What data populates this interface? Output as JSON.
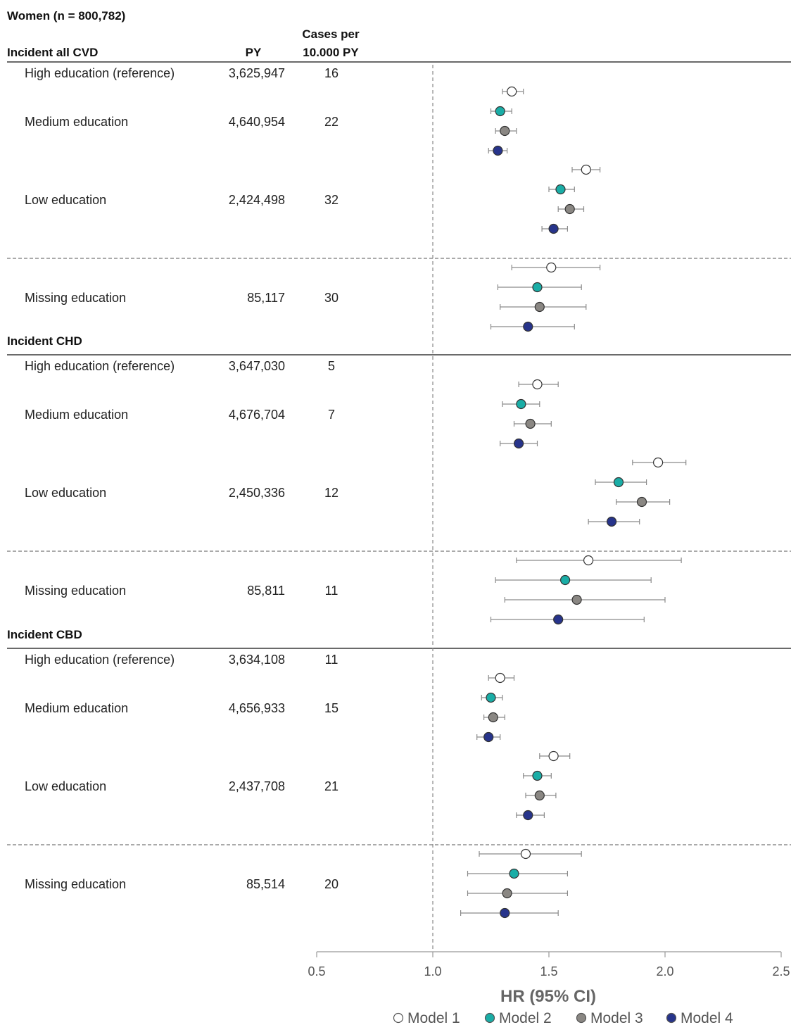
{
  "title": "Women (n = 800,782)",
  "column_headers": {
    "py": "PY",
    "cases_line1": "Cases per",
    "cases_line2": "10.000 PY"
  },
  "colors": {
    "model1": "#ffffff",
    "model2": "#1aada6",
    "model3": "#8a8783",
    "model4": "#27348b",
    "whisker": "#8a8a8a",
    "marker_edge": "#333333"
  },
  "chart_data": {
    "type": "forest",
    "xlabel": "HR (95% CI)",
    "xlim": [
      0.5,
      2.5
    ],
    "xticks": [
      "0.5",
      "1.0",
      "1.5",
      "2.0",
      "2.5"
    ],
    "reference_line": 1.0,
    "legend_position": "bottom",
    "series": [
      {
        "name": "Model 1"
      },
      {
        "name": "Model 2"
      },
      {
        "name": "Model 3"
      },
      {
        "name": "Model 4"
      }
    ],
    "sections": [
      {
        "heading": "Incident all CVD",
        "rows": [
          {
            "label": "High education (reference)",
            "py": "3,625,947",
            "cases": "16",
            "estimates": []
          },
          {
            "label": "Medium education",
            "py": "4,640,954",
            "cases": "22",
            "estimates": [
              {
                "hr": 1.34,
                "lo": 1.3,
                "hi": 1.39
              },
              {
                "hr": 1.29,
                "lo": 1.25,
                "hi": 1.34
              },
              {
                "hr": 1.31,
                "lo": 1.27,
                "hi": 1.36
              },
              {
                "hr": 1.28,
                "lo": 1.24,
                "hi": 1.32
              }
            ]
          },
          {
            "label": "Low education",
            "py": "2,424,498",
            "cases": "32",
            "estimates": [
              {
                "hr": 1.66,
                "lo": 1.6,
                "hi": 1.72
              },
              {
                "hr": 1.55,
                "lo": 1.5,
                "hi": 1.61
              },
              {
                "hr": 1.59,
                "lo": 1.54,
                "hi": 1.65
              },
              {
                "hr": 1.52,
                "lo": 1.47,
                "hi": 1.58
              }
            ]
          },
          {
            "label": "Missing education",
            "py": "85,117",
            "cases": "30",
            "estimates": [
              {
                "hr": 1.51,
                "lo": 1.34,
                "hi": 1.72
              },
              {
                "hr": 1.45,
                "lo": 1.28,
                "hi": 1.64
              },
              {
                "hr": 1.46,
                "lo": 1.29,
                "hi": 1.66
              },
              {
                "hr": 1.41,
                "lo": 1.25,
                "hi": 1.61
              }
            ]
          }
        ]
      },
      {
        "heading": "Incident CHD",
        "rows": [
          {
            "label": "High education (reference)",
            "py": "3,647,030",
            "cases": "5",
            "estimates": []
          },
          {
            "label": "Medium education",
            "py": "4,676,704",
            "cases": "7",
            "estimates": [
              {
                "hr": 1.45,
                "lo": 1.37,
                "hi": 1.54
              },
              {
                "hr": 1.38,
                "lo": 1.3,
                "hi": 1.46
              },
              {
                "hr": 1.42,
                "lo": 1.35,
                "hi": 1.51
              },
              {
                "hr": 1.37,
                "lo": 1.29,
                "hi": 1.45
              }
            ]
          },
          {
            "label": "Low education",
            "py": "2,450,336",
            "cases": "12",
            "estimates": [
              {
                "hr": 1.97,
                "lo": 1.86,
                "hi": 2.09
              },
              {
                "hr": 1.8,
                "lo": 1.7,
                "hi": 1.92
              },
              {
                "hr": 1.9,
                "lo": 1.79,
                "hi": 2.02
              },
              {
                "hr": 1.77,
                "lo": 1.67,
                "hi": 1.89
              }
            ]
          },
          {
            "label": "Missing education",
            "py": "85,811",
            "cases": "11",
            "estimates": [
              {
                "hr": 1.67,
                "lo": 1.36,
                "hi": 2.07
              },
              {
                "hr": 1.57,
                "lo": 1.27,
                "hi": 1.94
              },
              {
                "hr": 1.62,
                "lo": 1.31,
                "hi": 2.0
              },
              {
                "hr": 1.54,
                "lo": 1.25,
                "hi": 1.91
              }
            ]
          }
        ]
      },
      {
        "heading": "Incident CBD",
        "rows": [
          {
            "label": "High education (reference)",
            "py": "3,634,108",
            "cases": "11",
            "estimates": []
          },
          {
            "label": "Medium education",
            "py": "4,656,933",
            "cases": "15",
            "estimates": [
              {
                "hr": 1.29,
                "lo": 1.24,
                "hi": 1.35
              },
              {
                "hr": 1.25,
                "lo": 1.21,
                "hi": 1.3
              },
              {
                "hr": 1.26,
                "lo": 1.22,
                "hi": 1.31
              },
              {
                "hr": 1.24,
                "lo": 1.19,
                "hi": 1.29
              }
            ]
          },
          {
            "label": "Low education",
            "py": "2,437,708",
            "cases": "21",
            "estimates": [
              {
                "hr": 1.52,
                "lo": 1.46,
                "hi": 1.59
              },
              {
                "hr": 1.45,
                "lo": 1.39,
                "hi": 1.51
              },
              {
                "hr": 1.46,
                "lo": 1.4,
                "hi": 1.53
              },
              {
                "hr": 1.41,
                "lo": 1.36,
                "hi": 1.48
              }
            ]
          },
          {
            "label": "Missing education",
            "py": "85,514",
            "cases": "20",
            "estimates": [
              {
                "hr": 1.4,
                "lo": 1.2,
                "hi": 1.64
              },
              {
                "hr": 1.35,
                "lo": 1.15,
                "hi": 1.58
              },
              {
                "hr": 1.32,
                "lo": 1.15,
                "hi": 1.58
              },
              {
                "hr": 1.31,
                "lo": 1.12,
                "hi": 1.54
              }
            ]
          }
        ]
      }
    ]
  }
}
